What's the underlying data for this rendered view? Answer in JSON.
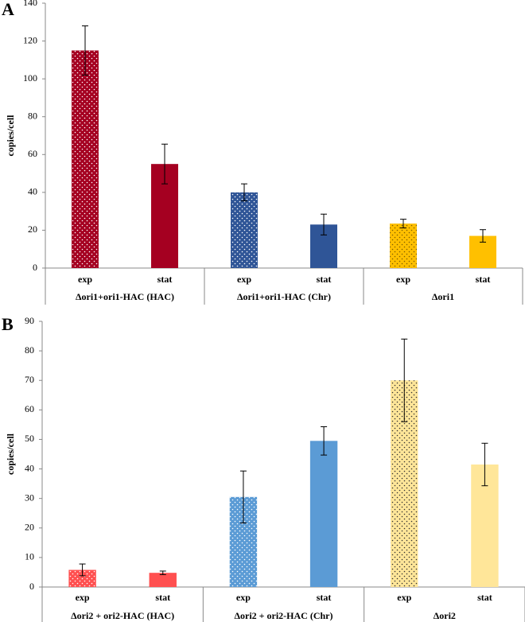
{
  "chart_data": [
    {
      "type": "bar",
      "panel": "A",
      "y_label": "copies/cell",
      "ylim": [
        0,
        140
      ],
      "yticks": [
        0,
        20,
        40,
        60,
        80,
        100,
        120,
        140
      ],
      "groups": [
        {
          "label": "Δori1+ori1-HAC (HAC)",
          "categories": [
            "exp",
            "stat"
          ],
          "values": [
            115,
            55
          ],
          "errors": [
            13,
            10.5
          ],
          "color": "#a50021",
          "patterns": [
            "dots",
            "solid"
          ],
          "dot_color": "#ffffff"
        },
        {
          "label": "Δori1+ori1-HAC (Chr)",
          "categories": [
            "exp",
            "stat"
          ],
          "values": [
            40,
            23
          ],
          "errors": [
            4.5,
            5.5
          ],
          "color": "#2f5597",
          "patterns": [
            "dots",
            "solid"
          ],
          "dot_color": "#ffffff"
        },
        {
          "label": "Δori1",
          "categories": [
            "exp",
            "stat"
          ],
          "values": [
            23.5,
            17
          ],
          "errors": [
            2.3,
            3.3
          ],
          "color": "#ffc000",
          "patterns": [
            "dots",
            "solid"
          ],
          "dot_color": "#7f6000"
        }
      ]
    },
    {
      "type": "bar",
      "panel": "B",
      "y_label": "copies/cell",
      "ylim": [
        0,
        90
      ],
      "yticks": [
        0,
        10,
        20,
        30,
        40,
        50,
        60,
        70,
        80,
        90
      ],
      "groups": [
        {
          "label": "Δori2 + ori2-HAC (HAC)",
          "categories": [
            "exp",
            "stat"
          ],
          "values": [
            5.8,
            4.8
          ],
          "errors": [
            2,
            0.6
          ],
          "color": "#ff5050",
          "patterns": [
            "dots",
            "solid"
          ],
          "dot_color": "#ffffff"
        },
        {
          "label": "Δori2 + ori2-HAC (Chr)",
          "categories": [
            "exp",
            "stat"
          ],
          "values": [
            30.5,
            49.5
          ],
          "errors": [
            8.8,
            4.8
          ],
          "color": "#5b9bd5",
          "patterns": [
            "dots",
            "solid"
          ],
          "dot_color": "#ffffff"
        },
        {
          "label": "Δori2",
          "categories": [
            "exp",
            "stat"
          ],
          "values": [
            70,
            41.5
          ],
          "errors": [
            14,
            7.2
          ],
          "color": "#ffe699",
          "patterns": [
            "dots",
            "solid"
          ],
          "dot_color": "#333333"
        }
      ]
    }
  ]
}
